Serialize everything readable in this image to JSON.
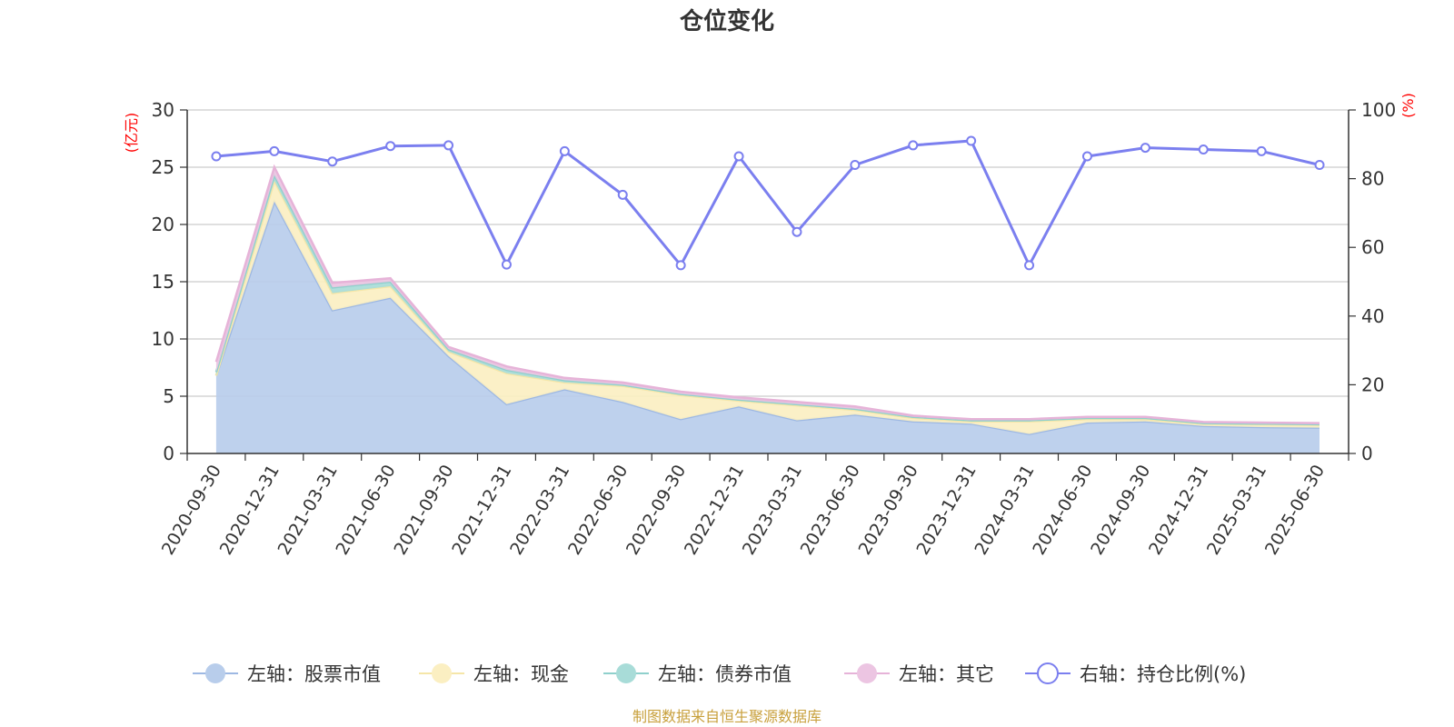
{
  "chart_data": {
    "type": "area",
    "title": "仓位变化",
    "categories": [
      "2020-09-30",
      "2020-12-31",
      "2021-03-31",
      "2021-06-30",
      "2021-09-30",
      "2021-12-31",
      "2022-03-31",
      "2022-06-30",
      "2022-09-30",
      "2022-12-31",
      "2023-03-31",
      "2023-06-30",
      "2023-09-30",
      "2023-12-31",
      "2024-03-31",
      "2024-06-30",
      "2024-09-30",
      "2024-12-31",
      "2025-03-31",
      "2025-06-30"
    ],
    "left_axis": {
      "unit": "(亿元)",
      "ylim": [
        0,
        30
      ],
      "ticks": [
        "0",
        "5",
        "10",
        "15",
        "20",
        "25",
        "30"
      ]
    },
    "right_axis": {
      "unit": "(%)",
      "ylim": [
        0,
        100
      ],
      "ticks": [
        "0",
        "20",
        "40",
        "60",
        "80",
        "100"
      ]
    },
    "grid": true,
    "legend_position": "bottom",
    "series": [
      {
        "name": "左轴：股票市值",
        "axis": "left",
        "stack": true,
        "color": "#9db8e3",
        "fill": "#b8cdeb",
        "values": [
          6.8,
          22.0,
          12.5,
          13.6,
          8.5,
          4.3,
          5.6,
          4.5,
          3.0,
          4.1,
          2.9,
          3.4,
          2.8,
          2.6,
          1.7,
          2.7,
          2.8,
          2.4,
          2.3,
          2.25
        ]
      },
      {
        "name": "左轴：现金",
        "axis": "left",
        "stack": true,
        "color": "#f5e6a8",
        "fill": "#fbefc2",
        "values": [
          0.0,
          1.8,
          1.5,
          1.0,
          0.4,
          2.7,
          0.6,
          1.4,
          2.1,
          0.5,
          1.3,
          0.4,
          0.3,
          0.2,
          1.1,
          0.3,
          0.2,
          0.2,
          0.25,
          0.25
        ]
      },
      {
        "name": "左轴：债券市值",
        "axis": "left",
        "stack": true,
        "color": "#8fd0cc",
        "fill": "#a8dcd8",
        "values": [
          0.3,
          0.5,
          0.5,
          0.4,
          0.2,
          0.3,
          0.2,
          0.1,
          0.1,
          0.1,
          0.1,
          0.1,
          0.1,
          0.1,
          0.1,
          0.1,
          0.1,
          0.05,
          0.05,
          0.05
        ]
      },
      {
        "name": "左轴：其它",
        "axis": "left",
        "stack": true,
        "color": "#e6b3d8",
        "fill": "#ecc5e2",
        "values": [
          0.9,
          0.7,
          0.4,
          0.3,
          0.2,
          0.3,
          0.2,
          0.2,
          0.2,
          0.2,
          0.2,
          0.2,
          0.1,
          0.1,
          0.1,
          0.1,
          0.1,
          0.1,
          0.1,
          0.1
        ]
      },
      {
        "name": "右轴：持仓比例(%)",
        "axis": "right",
        "type": "line",
        "color": "#7b7fef",
        "values": [
          86.5,
          88.0,
          85.0,
          89.5,
          89.7,
          55.0,
          88.0,
          75.3,
          54.8,
          86.5,
          64.5,
          84.0,
          89.7,
          91.0,
          54.8,
          86.5,
          89.0,
          88.5,
          88.0,
          84.0
        ]
      }
    ]
  },
  "source_note": "制图数据来自恒生聚源数据库"
}
